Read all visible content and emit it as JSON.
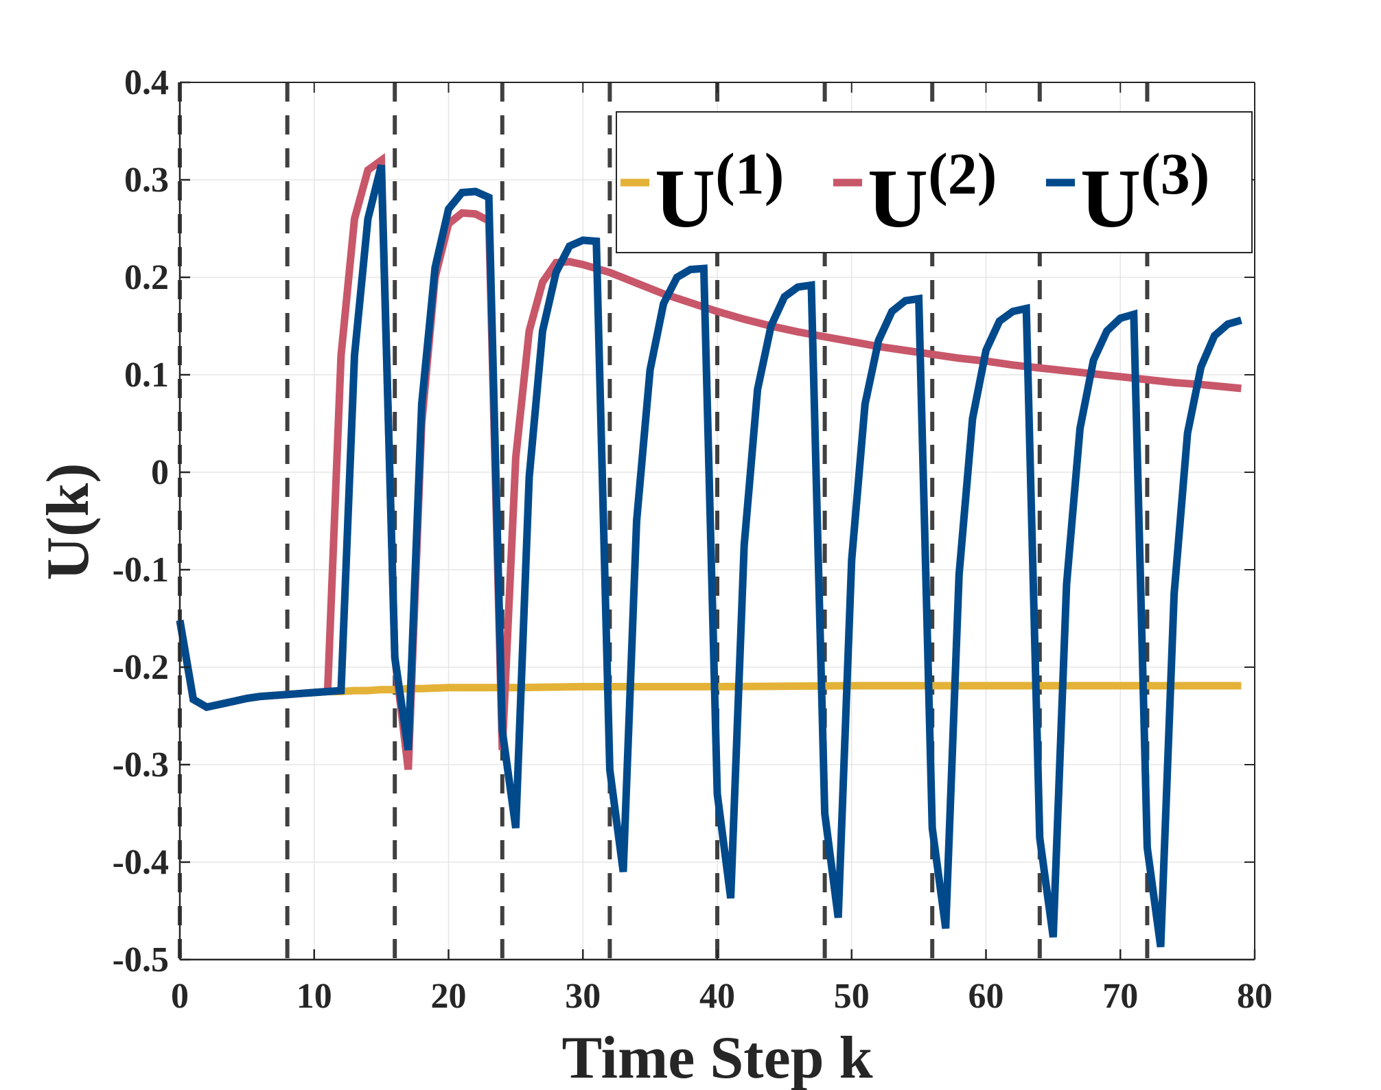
{
  "chart_data": {
    "type": "line",
    "title": "",
    "xlabel": "Time Step k",
    "ylabel": "U(k)",
    "xlim": [
      0,
      80
    ],
    "ylim": [
      -0.5,
      0.4
    ],
    "xticks": [
      0,
      10,
      20,
      30,
      40,
      50,
      60,
      70,
      80
    ],
    "xtick_labels": [
      "0",
      "10",
      "20",
      "30",
      "40",
      "50",
      "60",
      "70",
      "80"
    ],
    "yticks": [
      -0.5,
      -0.4,
      -0.3,
      -0.2,
      -0.1,
      0,
      0.1,
      0.2,
      0.3,
      0.4
    ],
    "ytick_labels": [
      "-0.5",
      "-0.4",
      "-0.3",
      "-0.2",
      "-0.1",
      "0",
      "0.1",
      "0.2",
      "0.3",
      "0.4"
    ],
    "grid": true,
    "legend_position": "top-right",
    "vertical_dashed_lines_at_x": [
      0,
      8,
      16,
      24,
      32,
      40,
      48,
      56,
      64,
      72
    ],
    "colors": {
      "U1": "#E3B237",
      "U2": "#C8576A",
      "U3": "#004A8C",
      "dashed": "#404040",
      "grid": "#e6e6e6",
      "axis": "#262626"
    },
    "series": [
      {
        "name": "U(1)",
        "base": "U",
        "sup": "(1)",
        "color_key": "U1",
        "x": [
          0,
          1,
          2,
          3,
          4,
          5,
          6,
          7,
          8,
          9,
          10,
          11,
          12,
          13,
          14,
          15,
          16,
          17,
          18,
          20,
          25,
          30,
          40,
          50,
          60,
          70,
          79
        ],
        "y": [
          -0.152,
          -0.233,
          -0.241,
          -0.238,
          -0.235,
          -0.232,
          -0.23,
          -0.229,
          -0.228,
          -0.227,
          -0.226,
          -0.225,
          -0.225,
          -0.224,
          -0.224,
          -0.223,
          -0.223,
          -0.222,
          -0.222,
          -0.221,
          -0.221,
          -0.22,
          -0.22,
          -0.219,
          -0.219,
          -0.219,
          -0.219
        ]
      },
      {
        "name": "U(2)",
        "base": "U",
        "sup": "(2)",
        "color_key": "U2",
        "x": [
          0,
          1,
          2,
          3,
          4,
          5,
          6,
          7,
          8,
          9,
          10,
          11,
          12,
          13,
          14,
          15,
          16,
          17,
          18,
          19,
          20,
          21,
          22,
          23,
          24,
          25,
          26,
          27,
          28,
          29,
          30,
          32,
          34,
          36,
          38,
          40,
          42,
          44,
          46,
          48,
          50,
          52,
          54,
          56,
          58,
          60,
          62,
          64,
          66,
          68,
          70,
          72,
          74,
          76,
          79
        ],
        "y": [
          -0.152,
          -0.233,
          -0.241,
          -0.238,
          -0.235,
          -0.232,
          -0.23,
          -0.229,
          -0.228,
          -0.227,
          -0.226,
          -0.225,
          0.12,
          0.26,
          0.31,
          0.32,
          -0.19,
          -0.305,
          0.05,
          0.2,
          0.255,
          0.266,
          0.265,
          0.258,
          -0.285,
          0.015,
          0.145,
          0.195,
          0.215,
          0.216,
          0.213,
          0.205,
          0.194,
          0.183,
          0.174,
          0.165,
          0.157,
          0.15,
          0.144,
          0.139,
          0.134,
          0.129,
          0.125,
          0.121,
          0.117,
          0.114,
          0.11,
          0.107,
          0.104,
          0.101,
          0.098,
          0.095,
          0.092,
          0.09,
          0.086
        ]
      },
      {
        "name": "U(3)",
        "base": "U",
        "sup": "(3)",
        "color_key": "U3",
        "x": [
          0,
          1,
          2,
          3,
          4,
          5,
          6,
          7,
          8,
          9,
          10,
          11,
          12,
          13,
          14,
          15,
          16,
          17,
          18,
          19,
          20,
          21,
          22,
          23,
          24,
          25,
          26,
          27,
          28,
          29,
          30,
          31,
          32,
          33,
          34,
          35,
          36,
          37,
          38,
          39,
          40,
          41,
          42,
          43,
          44,
          45,
          46,
          47,
          48,
          49,
          50,
          51,
          52,
          53,
          54,
          55,
          56,
          57,
          58,
          59,
          60,
          61,
          62,
          63,
          64,
          65,
          66,
          67,
          68,
          69,
          70,
          71,
          72,
          73,
          74,
          75,
          76,
          77,
          78,
          79
        ],
        "y": [
          -0.152,
          -0.233,
          -0.241,
          -0.238,
          -0.235,
          -0.232,
          -0.23,
          -0.229,
          -0.228,
          -0.227,
          -0.226,
          -0.225,
          -0.224,
          0.12,
          0.26,
          0.315,
          -0.19,
          -0.285,
          0.07,
          0.21,
          0.27,
          0.287,
          0.288,
          0.282,
          -0.265,
          -0.365,
          -0.005,
          0.145,
          0.205,
          0.232,
          0.238,
          0.237,
          -0.305,
          -0.41,
          -0.05,
          0.105,
          0.173,
          0.2,
          0.208,
          0.209,
          -0.33,
          -0.437,
          -0.075,
          0.085,
          0.15,
          0.18,
          0.19,
          0.192,
          -0.35,
          -0.457,
          -0.09,
          0.07,
          0.135,
          0.165,
          0.176,
          0.178,
          -0.365,
          -0.468,
          -0.105,
          0.055,
          0.125,
          0.155,
          0.165,
          0.168,
          -0.375,
          -0.477,
          -0.115,
          0.045,
          0.115,
          0.145,
          0.158,
          0.162,
          -0.385,
          -0.487,
          -0.125,
          0.04,
          0.108,
          0.14,
          0.152,
          0.156
        ]
      }
    ]
  }
}
